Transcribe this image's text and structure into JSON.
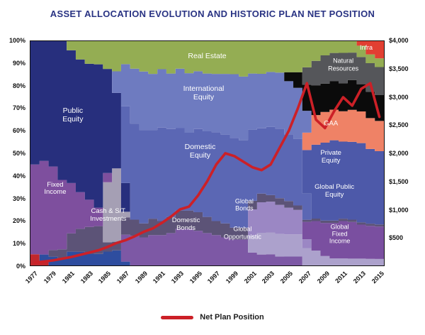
{
  "title": "ASSET ALLOCATION EVOLUTION AND HISTORIC PLAN NET POSITION",
  "legend": {
    "label": "Net Plan Position"
  },
  "colors": {
    "title_text": "#293383",
    "axis_text": "#111111",
    "plot_border": "#111111",
    "net_line": "#cc2027"
  },
  "chart_data": {
    "type": "area",
    "stacking": "percent",
    "x": [
      1977,
      1978,
      1979,
      1980,
      1981,
      1982,
      1983,
      1984,
      1985,
      1986,
      1987,
      1988,
      1989,
      1990,
      1991,
      1992,
      1993,
      1994,
      1995,
      1996,
      1997,
      1998,
      1999,
      2000,
      2001,
      2002,
      2003,
      2004,
      2005,
      2006,
      2007,
      2008,
      2009,
      2010,
      2011,
      2012,
      2013,
      2014,
      2015
    ],
    "x_tick_labels": [
      "1977",
      "1979",
      "1981",
      "1983",
      "1985",
      "1987",
      "1989",
      "1991",
      "1993",
      "1995",
      "1997",
      "1999",
      "2001",
      "2003",
      "2005",
      "2007",
      "2009",
      "2011",
      "2013",
      "2015"
    ],
    "left_axis": {
      "max": 100,
      "ticks": [
        {
          "label": "100%",
          "value": 100
        },
        {
          "label": "90%",
          "value": 90
        },
        {
          "label": "80%",
          "value": 80
        },
        {
          "label": "70%",
          "value": 70
        },
        {
          "label": "60%",
          "value": 60
        },
        {
          "label": "50%",
          "value": 50
        },
        {
          "label": "40%",
          "value": 40
        },
        {
          "label": "30%",
          "value": 30
        },
        {
          "label": "20%",
          "value": 20
        },
        {
          "label": "10%",
          "value": 10
        },
        {
          "label": "0%",
          "value": 0
        }
      ]
    },
    "right_axis": {
      "max": 4000,
      "ticks": [
        {
          "label": "$4,000",
          "value": 4000
        },
        {
          "label": "$3,500",
          "value": 3500
        },
        {
          "label": "$3,000",
          "value": 3000
        },
        {
          "label": "$2,500",
          "value": 2500
        },
        {
          "label": "$2,000",
          "value": 2000
        },
        {
          "label": "$1,500",
          "value": 1500
        },
        {
          "label": "$1,000",
          "value": 1000
        },
        {
          "label": "$500",
          "value": 500
        }
      ]
    },
    "series": [
      {
        "id": "unlabeled-red",
        "label": "",
        "color": "#c1272d",
        "values": [
          5,
          2,
          0,
          0,
          0,
          0,
          0,
          0,
          0,
          0,
          0,
          0,
          0,
          0,
          0,
          0,
          0,
          0,
          0,
          0,
          0,
          0,
          0,
          0,
          0,
          0,
          0,
          0,
          0,
          0,
          0,
          0,
          0,
          0,
          0,
          0,
          0,
          0,
          0
        ]
      },
      {
        "id": "unlabeled-blue",
        "label": "",
        "color": "#2e4d9f",
        "values": [
          0,
          3,
          4,
          3,
          6,
          6,
          5,
          5,
          6,
          7,
          2,
          0,
          0,
          0,
          0,
          0,
          0,
          0,
          0,
          0,
          0,
          0,
          0,
          0,
          0,
          0,
          0,
          0,
          0,
          0,
          0,
          0,
          0,
          0,
          0,
          0,
          0,
          0,
          0
        ]
      },
      {
        "id": "domestic-bonds",
        "label": "Domestic Bonds",
        "color": "#7d58a5",
        "values": [
          0,
          0,
          0,
          0,
          0,
          0,
          0,
          0,
          0,
          0,
          14,
          13,
          12,
          13,
          13,
          14,
          16,
          16,
          15,
          14,
          13,
          12,
          11,
          11,
          6,
          5,
          5,
          4,
          4,
          4,
          0,
          0,
          0,
          0,
          0,
          0,
          0,
          0,
          0
        ]
      },
      {
        "id": "global-opportunistic",
        "label": "Global Opportunistic",
        "color": "#aca1cc",
        "values": [
          0,
          0,
          0,
          0,
          0,
          0,
          0,
          0,
          0,
          0,
          0,
          0,
          0,
          0,
          0,
          0,
          0,
          0,
          0,
          0,
          0,
          0,
          0,
          0,
          8,
          10,
          10,
          10,
          10,
          10,
          8,
          6,
          4,
          3,
          3,
          3,
          3,
          3,
          3
        ]
      },
      {
        "id": "global-bonds",
        "label": "Global Bonds",
        "color": "#9b87c4",
        "values": [
          0,
          0,
          0,
          0,
          0,
          0,
          0,
          0,
          0,
          0,
          0,
          0,
          0,
          0,
          0,
          0,
          0,
          0,
          0,
          0,
          0,
          0,
          0,
          0,
          12,
          14,
          14,
          13,
          12,
          11,
          4,
          0,
          0,
          0,
          0,
          0,
          0,
          0,
          0
        ]
      },
      {
        "id": "global-fixed-income",
        "label": "Global Fixed Income",
        "color": "#7a4fa0",
        "values": [
          0,
          0,
          0,
          0,
          0,
          0,
          0,
          0,
          0,
          0,
          0,
          0,
          0,
          0,
          0,
          0,
          0,
          0,
          0,
          0,
          0,
          0,
          0,
          0,
          0,
          0,
          0,
          0,
          0,
          0,
          8,
          12,
          14,
          15,
          16,
          16,
          15,
          15,
          15
        ]
      },
      {
        "id": "cash",
        "label": "Cash & S/T Investments",
        "color": "#5c5377",
        "values": [
          0,
          0,
          3,
          4,
          8,
          10,
          12,
          12,
          4,
          4,
          9,
          7,
          6,
          7,
          6,
          7,
          8,
          8,
          8,
          7,
          6,
          6,
          5,
          5,
          4,
          4,
          3,
          3,
          3,
          2,
          1,
          1,
          1,
          1,
          1,
          1,
          1,
          1,
          1
        ]
      },
      {
        "id": "unlabeled-gray",
        "label": "",
        "color": "#a59fb4",
        "values": [
          0,
          0,
          0,
          0,
          0,
          0,
          0,
          0,
          26,
          34,
          3,
          0,
          0,
          0,
          0,
          0,
          0,
          0,
          0,
          0,
          0,
          0,
          0,
          0,
          0,
          0,
          0,
          0,
          0,
          0,
          0,
          0,
          0,
          0,
          0,
          0,
          0,
          0,
          0
        ]
      },
      {
        "id": "fixed-income",
        "label": "Fixed Income",
        "color": "#7e4f9e",
        "values": [
          40,
          43,
          38,
          30,
          22,
          16,
          12,
          8,
          4,
          0,
          0,
          0,
          0,
          0,
          0,
          0,
          0,
          0,
          0,
          0,
          0,
          0,
          0,
          0,
          0,
          0,
          0,
          0,
          0,
          0,
          0,
          0,
          0,
          0,
          0,
          0,
          0,
          0,
          0
        ]
      },
      {
        "id": "public-equity",
        "label": "Public Equity",
        "color": "#272f7d",
        "values": [
          55,
          55,
          57,
          60,
          58,
          58,
          60,
          62,
          45,
          35,
          15,
          0,
          0,
          0,
          0,
          0,
          0,
          0,
          0,
          0,
          0,
          0,
          0,
          0,
          0,
          0,
          0,
          0,
          0,
          0,
          0,
          0,
          0,
          0,
          0,
          0,
          0,
          0,
          0
        ]
      },
      {
        "id": "domestic-equity",
        "label": "Domestic Equity",
        "color": "#5b67b4",
        "values": [
          0,
          0,
          0,
          0,
          0,
          0,
          0,
          0,
          0,
          0,
          40,
          42,
          40,
          38,
          40,
          38,
          36,
          34,
          36,
          37,
          38,
          38,
          38,
          37,
          33,
          30,
          31,
          31,
          30,
          30,
          12,
          0,
          0,
          0,
          0,
          0,
          0,
          0,
          0
        ]
      },
      {
        "id": "global-public-equity",
        "label": "Global Public Equity",
        "color": "#4d59a9",
        "values": [
          0,
          0,
          0,
          0,
          0,
          0,
          0,
          0,
          0,
          0,
          0,
          0,
          0,
          0,
          0,
          0,
          0,
          0,
          0,
          0,
          0,
          0,
          0,
          0,
          0,
          0,
          0,
          0,
          0,
          0,
          20,
          30,
          33,
          34,
          33,
          34,
          35,
          34,
          34
        ]
      },
      {
        "id": "private-equity",
        "label": "Private Equity",
        "color": "#ef8266",
        "values": [
          0,
          0,
          0,
          0,
          0,
          0,
          0,
          0,
          0,
          0,
          0,
          0,
          0,
          0,
          0,
          0,
          0,
          0,
          0,
          0,
          0,
          0,
          0,
          0,
          0,
          0,
          0,
          0,
          0,
          0,
          8,
          12,
          13,
          13,
          13,
          14,
          14,
          14,
          14
        ]
      },
      {
        "id": "international-equity",
        "label": "International Equity",
        "color": "#6e7bc0",
        "values": [
          0,
          0,
          0,
          0,
          0,
          0,
          0,
          0,
          0,
          10,
          22,
          24,
          25,
          24,
          25,
          24,
          26,
          26,
          25,
          25,
          25,
          26,
          27,
          27,
          26,
          25,
          25,
          25,
          24,
          23,
          10,
          0,
          0,
          0,
          0,
          0,
          0,
          0,
          0
        ]
      },
      {
        "id": "gaa",
        "label": "GAA",
        "color": "#0b0b0b",
        "values": [
          0,
          0,
          0,
          0,
          0,
          0,
          0,
          0,
          0,
          0,
          0,
          0,
          0,
          0,
          0,
          0,
          0,
          0,
          0,
          0,
          0,
          0,
          0,
          0,
          0,
          0,
          0,
          0,
          4,
          7,
          12,
          12,
          12,
          12,
          12,
          13,
          12,
          12,
          12
        ]
      },
      {
        "id": "natural-resources",
        "label": "Natural Resources",
        "color": "#55565a",
        "values": [
          0,
          0,
          0,
          0,
          0,
          0,
          0,
          0,
          0,
          0,
          0,
          0,
          0,
          0,
          0,
          0,
          0,
          0,
          0,
          0,
          0,
          0,
          0,
          0,
          0,
          0,
          0,
          0,
          0,
          0,
          8,
          10,
          12,
          12,
          13,
          12,
          12,
          13,
          13
        ]
      },
      {
        "id": "real-estate",
        "label": "Real Estate",
        "color": "#94ad53",
        "values": [
          0,
          0,
          0,
          0,
          4,
          8,
          10,
          10,
          12,
          14,
          12,
          12,
          13,
          14,
          12,
          14,
          12,
          14,
          13,
          14,
          14,
          14,
          14,
          15,
          15,
          15,
          14,
          14,
          14,
          14,
          12,
          8,
          6,
          5,
          5,
          5,
          5,
          4,
          4
        ]
      },
      {
        "id": "infra",
        "label": "Infra",
        "color": "#e23f32",
        "values": [
          0,
          0,
          0,
          0,
          0,
          0,
          0,
          0,
          0,
          0,
          0,
          0,
          0,
          0,
          0,
          0,
          0,
          0,
          0,
          0,
          0,
          0,
          0,
          0,
          0,
          0,
          0,
          0,
          0,
          0,
          0,
          0,
          0,
          0,
          0,
          0,
          2,
          6,
          8
        ]
      }
    ],
    "net_position": {
      "label": "Net Plan Position",
      "color": "#cc2027",
      "values": [
        50,
        70,
        90,
        120,
        150,
        190,
        230,
        270,
        330,
        400,
        450,
        520,
        600,
        660,
        760,
        870,
        1000,
        1050,
        1250,
        1500,
        1800,
        2000,
        1950,
        1850,
        1750,
        1700,
        1800,
        2100,
        2400,
        2800,
        3250,
        2600,
        2450,
        2750,
        3000,
        2850,
        3150,
        3250,
        2650
      ]
    },
    "area_labels": [
      {
        "id": "real-estate",
        "lines": [
          "Real Estate"
        ],
        "x": 50,
        "y": 6.5,
        "size": 10.5
      },
      {
        "id": "infra",
        "lines": [
          "Infra"
        ],
        "x": 95,
        "y": 3,
        "size": 9
      },
      {
        "id": "natural-resources",
        "lines": [
          "Natural",
          "Resources"
        ],
        "x": 88.5,
        "y": 10.5,
        "size": 9
      },
      {
        "id": "international-equity",
        "lines": [
          "International",
          "Equity"
        ],
        "x": 49,
        "y": 23,
        "size": 10.5
      },
      {
        "id": "public-equity",
        "lines": [
          "Public",
          "Equity"
        ],
        "x": 12,
        "y": 33,
        "size": 10.5
      },
      {
        "id": "domestic-equity",
        "lines": [
          "Domestic",
          "Equity"
        ],
        "x": 48,
        "y": 49,
        "size": 10.5
      },
      {
        "id": "gaa",
        "lines": [
          "GAA"
        ],
        "x": 85,
        "y": 37,
        "size": 9.5
      },
      {
        "id": "private-equity",
        "lines": [
          "Private",
          "Equity"
        ],
        "x": 85,
        "y": 52,
        "size": 9.5
      },
      {
        "id": "global-public-equity",
        "lines": [
          "Global Public",
          "Equity"
        ],
        "x": 86,
        "y": 67,
        "size": 9.5
      },
      {
        "id": "fixed-income",
        "lines": [
          "Fixed",
          "Income"
        ],
        "x": 7,
        "y": 66,
        "size": 9.5
      },
      {
        "id": "cash",
        "lines": [
          "Cash & S/T",
          "Investments"
        ],
        "x": 22,
        "y": 78,
        "size": 9.5
      },
      {
        "id": "domestic-bonds",
        "lines": [
          "Domestic",
          "Bonds"
        ],
        "x": 44,
        "y": 82,
        "size": 9.5
      },
      {
        "id": "global-bonds",
        "lines": [
          "Global",
          "Bonds"
        ],
        "x": 60.5,
        "y": 73,
        "size": 9
      },
      {
        "id": "global-opportunistic",
        "lines": [
          "Global",
          "Opportunistic"
        ],
        "x": 60,
        "y": 85.5,
        "size": 9
      },
      {
        "id": "global-fixed-income",
        "lines": [
          "Global",
          "Fixed",
          "Income"
        ],
        "x": 87.5,
        "y": 86,
        "size": 9
      }
    ]
  }
}
